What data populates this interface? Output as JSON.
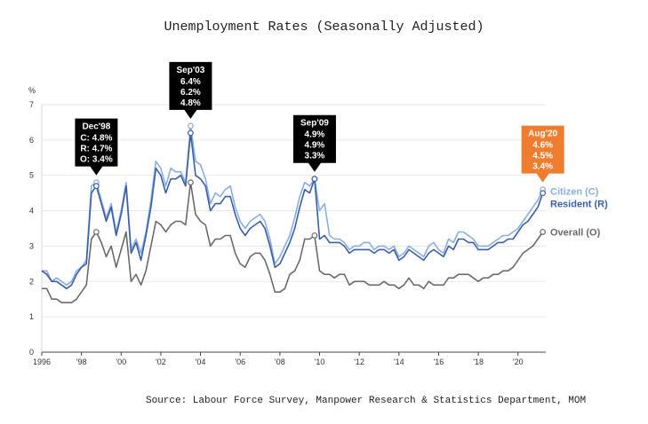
{
  "chart_data": {
    "type": "line",
    "title": "Unemployment Rates (Seasonally Adjusted)",
    "ylabel": "%",
    "xlabel": "",
    "ylim": [
      0,
      7
    ],
    "xlim": [
      1996,
      2021.4
    ],
    "yticks": [
      "0",
      "1",
      "2",
      "3",
      "4",
      "5",
      "6",
      "7"
    ],
    "xtick_values": [
      1996,
      1998,
      2000,
      2002,
      2004,
      2006,
      2008,
      2010,
      2012,
      2014,
      2016,
      2018,
      2020
    ],
    "xtick_labels": [
      "1996",
      "'98",
      "'00",
      "'02",
      "'04",
      "'06",
      "'08",
      "'10",
      "'12",
      "'14",
      "'16",
      "'18",
      "'20"
    ],
    "source": "Source: Labour Force Survey, Manpower Research & Statistics Department, MOM",
    "colors": {
      "citizen": "#8aaee0",
      "resident": "#3a5fa8",
      "overall": "#6b6b6b",
      "callout": "#000000",
      "callout_latest": "#ee7d30"
    },
    "series": [
      {
        "key": "citizen",
        "name": "Citizen (C)",
        "x": [
          1996,
          1996.25,
          1996.5,
          1996.75,
          1997,
          1997.25,
          1997.5,
          1997.75,
          1998,
          1998.25,
          1998.5,
          1998.75,
          1999,
          1999.25,
          1999.5,
          1999.75,
          2000,
          2000.25,
          2000.5,
          2000.75,
          2001,
          2001.25,
          2001.5,
          2001.75,
          2002,
          2002.25,
          2002.5,
          2002.75,
          2003,
          2003.25,
          2003.5,
          2003.75,
          2004,
          2004.25,
          2004.5,
          2004.75,
          2005,
          2005.25,
          2005.5,
          2005.75,
          2006,
          2006.25,
          2006.5,
          2006.75,
          2007,
          2007.25,
          2007.5,
          2007.75,
          2008,
          2008.25,
          2008.5,
          2008.75,
          2009,
          2009.25,
          2009.5,
          2009.75,
          2010,
          2010.25,
          2010.5,
          2010.75,
          2011,
          2011.25,
          2011.5,
          2011.75,
          2012,
          2012.25,
          2012.5,
          2012.75,
          2013,
          2013.25,
          2013.5,
          2013.75,
          2014,
          2014.25,
          2014.5,
          2014.75,
          2015,
          2015.25,
          2015.5,
          2015.75,
          2016,
          2016.25,
          2016.5,
          2016.75,
          2017,
          2017.25,
          2017.5,
          2017.75,
          2018,
          2018.25,
          2018.5,
          2018.75,
          2019,
          2019.25,
          2019.5,
          2019.75,
          2020,
          2020.25,
          2020.5,
          2020.75,
          2021,
          2021.25
        ],
        "values": [
          2.3,
          2.3,
          2.0,
          2.1,
          2.0,
          1.9,
          2.0,
          2.3,
          2.4,
          2.6,
          4.7,
          4.8,
          4.3,
          3.8,
          4.2,
          3.4,
          4.0,
          4.8,
          2.9,
          3.2,
          2.8,
          3.4,
          4.3,
          5.4,
          5.2,
          4.7,
          5.2,
          5.1,
          5.1,
          4.8,
          6.4,
          5.4,
          5.3,
          4.9,
          4.2,
          4.5,
          4.4,
          4.6,
          4.7,
          4.1,
          3.7,
          3.5,
          3.7,
          3.8,
          3.9,
          3.7,
          3.2,
          2.5,
          2.7,
          3.0,
          3.3,
          3.8,
          4.4,
          4.8,
          4.7,
          4.9,
          4.0,
          4.2,
          3.3,
          3.2,
          3.2,
          3.1,
          2.9,
          3.0,
          3.0,
          3.1,
          3.1,
          2.9,
          3.0,
          3.0,
          2.9,
          3.0,
          2.7,
          2.8,
          3.0,
          2.9,
          2.8,
          2.7,
          3.0,
          3.1,
          2.9,
          2.8,
          3.2,
          3.1,
          3.4,
          3.4,
          3.3,
          3.2,
          3.0,
          3.0,
          3.0,
          3.1,
          3.2,
          3.3,
          3.3,
          3.4,
          3.5,
          3.7,
          3.9,
          4.1,
          4.3,
          4.6
        ]
      },
      {
        "key": "resident",
        "name": "Resident (R)",
        "x": [
          1996,
          1996.25,
          1996.5,
          1996.75,
          1997,
          1997.25,
          1997.5,
          1997.75,
          1998,
          1998.25,
          1998.5,
          1998.75,
          1999,
          1999.25,
          1999.5,
          1999.75,
          2000,
          2000.25,
          2000.5,
          2000.75,
          2001,
          2001.25,
          2001.5,
          2001.75,
          2002,
          2002.25,
          2002.5,
          2002.75,
          2003,
          2003.25,
          2003.5,
          2003.75,
          2004,
          2004.25,
          2004.5,
          2004.75,
          2005,
          2005.25,
          2005.5,
          2005.75,
          2006,
          2006.25,
          2006.5,
          2006.75,
          2007,
          2007.25,
          2007.5,
          2007.75,
          2008,
          2008.25,
          2008.5,
          2008.75,
          2009,
          2009.25,
          2009.5,
          2009.75,
          2010,
          2010.25,
          2010.5,
          2010.75,
          2011,
          2011.25,
          2011.5,
          2011.75,
          2012,
          2012.25,
          2012.5,
          2012.75,
          2013,
          2013.25,
          2013.5,
          2013.75,
          2014,
          2014.25,
          2014.5,
          2014.75,
          2015,
          2015.25,
          2015.5,
          2015.75,
          2016,
          2016.25,
          2016.5,
          2016.75,
          2017,
          2017.25,
          2017.5,
          2017.75,
          2018,
          2018.25,
          2018.5,
          2018.75,
          2019,
          2019.25,
          2019.5,
          2019.75,
          2020,
          2020.25,
          2020.5,
          2020.75,
          2021,
          2021.25
        ],
        "values": [
          2.3,
          2.2,
          2.0,
          2.0,
          1.9,
          1.8,
          1.9,
          2.2,
          2.4,
          2.5,
          4.5,
          4.7,
          4.2,
          3.7,
          4.1,
          3.3,
          3.9,
          4.7,
          2.8,
          3.1,
          2.6,
          3.3,
          4.1,
          5.2,
          5.0,
          4.5,
          4.9,
          4.9,
          5.0,
          4.7,
          6.2,
          5.0,
          4.9,
          4.7,
          4.0,
          4.2,
          4.2,
          4.4,
          4.4,
          3.9,
          3.5,
          3.3,
          3.5,
          3.6,
          3.7,
          3.5,
          3.0,
          2.4,
          2.5,
          2.8,
          3.1,
          3.5,
          4.1,
          4.6,
          4.5,
          4.9,
          3.2,
          3.3,
          3.1,
          3.1,
          3.1,
          3.0,
          2.8,
          2.9,
          2.9,
          2.9,
          2.9,
          2.8,
          2.9,
          2.9,
          2.8,
          2.9,
          2.6,
          2.7,
          2.9,
          2.8,
          2.7,
          2.6,
          2.8,
          2.9,
          2.8,
          2.7,
          3.0,
          2.9,
          3.2,
          3.2,
          3.1,
          3.1,
          2.9,
          2.9,
          2.9,
          3.0,
          3.1,
          3.1,
          3.2,
          3.2,
          3.4,
          3.6,
          3.7,
          3.9,
          4.1,
          4.5
        ]
      },
      {
        "key": "overall",
        "name": "Overall (O)",
        "x": [
          1996,
          1996.25,
          1996.5,
          1996.75,
          1997,
          1997.25,
          1997.5,
          1997.75,
          1998,
          1998.25,
          1998.5,
          1998.75,
          1999,
          1999.25,
          1999.5,
          1999.75,
          2000,
          2000.25,
          2000.5,
          2000.75,
          2001,
          2001.25,
          2001.5,
          2001.75,
          2002,
          2002.25,
          2002.5,
          2002.75,
          2003,
          2003.25,
          2003.5,
          2003.75,
          2004,
          2004.25,
          2004.5,
          2004.75,
          2005,
          2005.25,
          2005.5,
          2005.75,
          2006,
          2006.25,
          2006.5,
          2006.75,
          2007,
          2007.25,
          2007.5,
          2007.75,
          2008,
          2008.25,
          2008.5,
          2008.75,
          2009,
          2009.25,
          2009.5,
          2009.75,
          2010,
          2010.25,
          2010.5,
          2010.75,
          2011,
          2011.25,
          2011.5,
          2011.75,
          2012,
          2012.25,
          2012.5,
          2012.75,
          2013,
          2013.25,
          2013.5,
          2013.75,
          2014,
          2014.25,
          2014.5,
          2014.75,
          2015,
          2015.25,
          2015.5,
          2015.75,
          2016,
          2016.25,
          2016.5,
          2016.75,
          2017,
          2017.25,
          2017.5,
          2017.75,
          2018,
          2018.25,
          2018.5,
          2018.75,
          2019,
          2019.25,
          2019.5,
          2019.75,
          2020,
          2020.25,
          2020.5,
          2020.75,
          2021,
          2021.25
        ],
        "values": [
          1.8,
          1.8,
          1.5,
          1.5,
          1.4,
          1.4,
          1.4,
          1.5,
          1.7,
          1.9,
          3.2,
          3.4,
          3.1,
          2.7,
          3.0,
          2.4,
          2.9,
          3.4,
          2.0,
          2.2,
          1.9,
          2.3,
          3.0,
          3.7,
          3.6,
          3.4,
          3.6,
          3.7,
          3.7,
          3.6,
          4.8,
          3.9,
          3.7,
          3.6,
          3.0,
          3.2,
          3.2,
          3.3,
          3.3,
          2.8,
          2.5,
          2.4,
          2.7,
          2.8,
          2.8,
          2.6,
          2.2,
          1.7,
          1.7,
          1.8,
          2.2,
          2.3,
          2.6,
          3.2,
          3.2,
          3.3,
          2.3,
          2.2,
          2.2,
          2.1,
          2.2,
          2.2,
          1.9,
          2.0,
          2.0,
          2.0,
          1.9,
          1.9,
          1.9,
          2.0,
          1.9,
          1.9,
          1.8,
          1.9,
          2.1,
          1.9,
          1.9,
          1.8,
          2.0,
          1.9,
          1.9,
          1.9,
          2.1,
          2.1,
          2.2,
          2.2,
          2.2,
          2.1,
          2.0,
          2.1,
          2.1,
          2.2,
          2.2,
          2.3,
          2.3,
          2.4,
          2.6,
          2.8,
          2.9,
          3.0,
          3.2,
          3.4
        ]
      }
    ],
    "annotations": [
      {
        "label": "Dec'98",
        "lines": [
          "C: 4.8%",
          "R: 4.7%",
          "O: 3.4%"
        ],
        "x": 1998.75,
        "y": 4.8,
        "latest": false
      },
      {
        "label": "Sep'03",
        "lines": [
          "6.4%",
          "6.2%",
          "4.8%"
        ],
        "x": 2003.5,
        "y": 6.4,
        "latest": false
      },
      {
        "label": "Sep'09",
        "lines": [
          "4.9%",
          "4.9%",
          "3.3%"
        ],
        "x": 2009.75,
        "y": 4.9,
        "latest": false
      },
      {
        "label": "Aug'20",
        "lines": [
          "4.6%",
          "4.5%",
          "3.4%"
        ],
        "x": 2021.25,
        "y": 4.6,
        "latest": true
      }
    ],
    "markers": [
      {
        "series": "citizen",
        "x": 1998.75,
        "y": 4.8
      },
      {
        "series": "resident",
        "x": 1998.75,
        "y": 4.7
      },
      {
        "series": "overall",
        "x": 1998.75,
        "y": 3.4
      },
      {
        "series": "citizen",
        "x": 2003.5,
        "y": 6.4
      },
      {
        "series": "resident",
        "x": 2003.5,
        "y": 6.2
      },
      {
        "series": "overall",
        "x": 2003.5,
        "y": 4.8
      },
      {
        "series": "citizen",
        "x": 2009.75,
        "y": 4.9
      },
      {
        "series": "resident",
        "x": 2009.75,
        "y": 4.9
      },
      {
        "series": "overall",
        "x": 2009.75,
        "y": 3.3
      },
      {
        "series": "citizen",
        "x": 2021.25,
        "y": 4.6
      },
      {
        "series": "resident",
        "x": 2021.25,
        "y": 4.5
      },
      {
        "series": "overall",
        "x": 2021.25,
        "y": 3.4
      }
    ]
  }
}
